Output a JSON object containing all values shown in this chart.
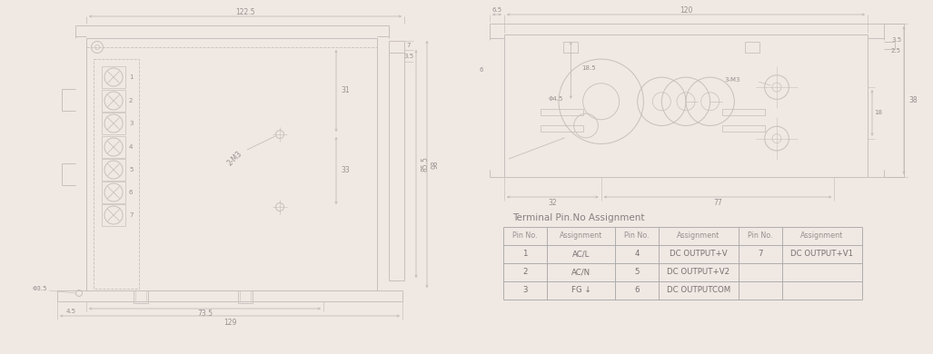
{
  "bg_color": "#f0e8e3",
  "line_color": "#c8bfbc",
  "dim_color": "#c0b8b5",
  "text_color": "#999090",
  "table_title": "Terminal Pin.No Assignment",
  "table_headers": [
    "Pin No.",
    "Assignment",
    "Pin No.",
    "Assignment",
    "Pin No.",
    "Assignment"
  ],
  "table_rows": [
    [
      "1",
      "AC/L",
      "4",
      "DC OUTPUT+V",
      "7",
      "DC OUTPUT+V1"
    ],
    [
      "2",
      "AC/N",
      "5",
      "DC OUTPUT+V2",
      "",
      ""
    ],
    [
      "3",
      "FG ↓",
      "6",
      "DC OUTPUTCOM",
      "",
      ""
    ]
  ]
}
